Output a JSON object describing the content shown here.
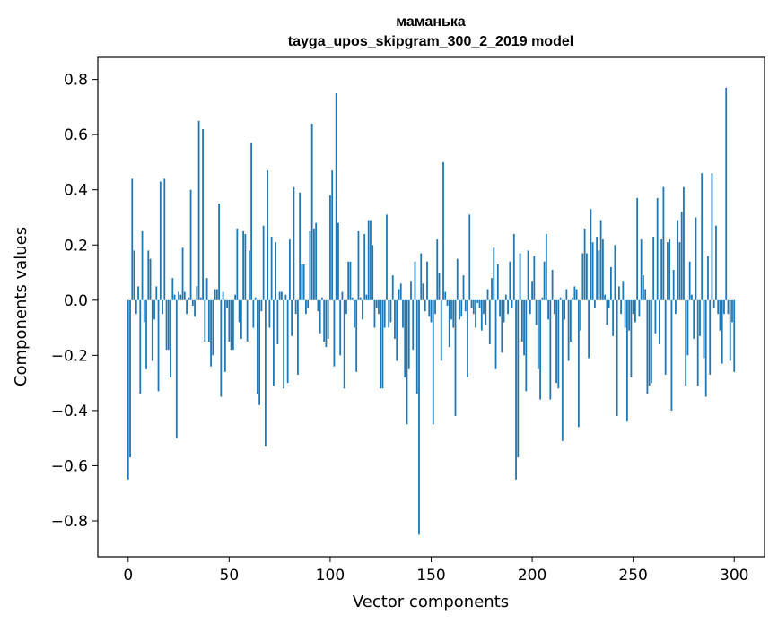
{
  "chart_data": {
    "type": "bar",
    "title_line1": "маманька",
    "title_line2": "tayga_upos_skipgram_300_2_2019 model",
    "xlabel": "Vector components",
    "ylabel": "Components values",
    "xlim": [
      -15,
      315
    ],
    "ylim": [
      -0.93,
      0.88
    ],
    "xticks": [
      0,
      50,
      100,
      150,
      200,
      250,
      300
    ],
    "xtick_labels": [
      "0",
      "50",
      "100",
      "150",
      "200",
      "250",
      "300"
    ],
    "yticks": [
      -0.8,
      -0.6,
      -0.4,
      -0.2,
      0.0,
      0.2,
      0.4,
      0.6,
      0.8
    ],
    "ytick_labels": [
      "−0.8",
      "−0.6",
      "−0.4",
      "−0.2",
      "0.0",
      "0.2",
      "0.4",
      "0.6",
      "0.8"
    ],
    "bar_color": "#1f77b4",
    "values": [
      -0.65,
      -0.57,
      0.44,
      0.18,
      -0.05,
      0.05,
      -0.34,
      0.25,
      -0.08,
      -0.25,
      0.18,
      0.15,
      -0.22,
      -0.07,
      0.05,
      -0.33,
      0.43,
      -0.05,
      0.44,
      -0.18,
      -0.18,
      -0.28,
      0.08,
      0.02,
      -0.5,
      0.03,
      0.02,
      0.19,
      0.03,
      -0.05,
      0.01,
      0.4,
      -0.02,
      -0.06,
      0.05,
      0.65,
      0.01,
      0.62,
      -0.15,
      0.08,
      -0.15,
      -0.24,
      -0.2,
      0.04,
      0.04,
      0.35,
      -0.35,
      0.03,
      -0.26,
      -0.03,
      -0.15,
      -0.18,
      -0.18,
      0.02,
      0.26,
      -0.08,
      -0.14,
      0.25,
      0.24,
      -0.15,
      0.18,
      0.57,
      -0.1,
      0.01,
      -0.34,
      -0.38,
      -0.04,
      0.27,
      -0.53,
      0.47,
      -0.1,
      0.23,
      -0.31,
      0.21,
      -0.16,
      0.03,
      0.03,
      -0.32,
      0.02,
      -0.3,
      0.22,
      -0.13,
      0.41,
      -0.05,
      -0.27,
      0.39,
      0.13,
      0.13,
      -0.05,
      -0.03,
      0.25,
      0.64,
      0.26,
      0.28,
      -0.04,
      -0.12,
      0.01,
      -0.15,
      -0.17,
      -0.14,
      0.38,
      0.47,
      -0.24,
      0.75,
      0.28,
      -0.2,
      0.03,
      -0.32,
      -0.05,
      0.14,
      0.14,
      0.01,
      -0.1,
      -0.26,
      0.25,
      0.01,
      -0.07,
      0.24,
      0.02,
      0.29,
      0.29,
      0.2,
      -0.1,
      -0.03,
      -0.05,
      -0.32,
      -0.32,
      -0.1,
      0.31,
      -0.1,
      -0.08,
      0.09,
      -0.14,
      -0.22,
      0.04,
      0.06,
      -0.1,
      -0.28,
      -0.45,
      -0.25,
      0.07,
      -0.18,
      0.14,
      -0.34,
      -0.85,
      0.17,
      0.06,
      -0.04,
      0.14,
      -0.06,
      -0.08,
      -0.45,
      -0.05,
      0.22,
      0.1,
      -0.22,
      0.5,
      0.03,
      -0.02,
      -0.17,
      -0.07,
      -0.1,
      -0.42,
      0.15,
      -0.07,
      -0.06,
      0.09,
      -0.04,
      -0.28,
      0.31,
      -0.03,
      -0.05,
      -0.1,
      -0.01,
      -0.03,
      -0.11,
      -0.05,
      -0.09,
      0.04,
      -0.16,
      0.08,
      0.19,
      -0.25,
      0.13,
      -0.06,
      -0.19,
      -0.08,
      0.02,
      -0.05,
      0.14,
      -0.03,
      0.24,
      -0.65,
      -0.57,
      0.17,
      -0.15,
      -0.2,
      -0.33,
      0.18,
      -0.05,
      0.07,
      0.16,
      -0.09,
      -0.25,
      -0.36,
      0.01,
      0.14,
      0.24,
      -0.07,
      -0.36,
      0.11,
      -0.05,
      -0.3,
      -0.32,
      0.01,
      -0.51,
      -0.07,
      0.04,
      -0.22,
      -0.15,
      0.01,
      0.05,
      0.04,
      -0.46,
      -0.11,
      0.17,
      0.26,
      0.17,
      -0.21,
      0.33,
      0.21,
      -0.03,
      0.23,
      0.18,
      0.29,
      0.22,
      0.02,
      -0.09,
      -0.03,
      0.12,
      -0.13,
      0.2,
      -0.42,
      0.05,
      -0.05,
      0.07,
      -0.1,
      -0.44,
      -0.11,
      -0.28,
      -0.05,
      -0.08,
      0.37,
      -0.06,
      0.22,
      0.09,
      0.04,
      -0.34,
      -0.31,
      -0.3,
      0.23,
      -0.12,
      0.37,
      -0.16,
      0.22,
      0.41,
      -0.27,
      0.21,
      0.22,
      -0.4,
      0.11,
      -0.05,
      0.29,
      0.21,
      0.32,
      0.41,
      -0.31,
      -0.2,
      0.14,
      0.02,
      -0.14,
      0.3,
      -0.31,
      -0.13,
      0.46,
      -0.21,
      -0.35,
      0.16,
      -0.27,
      0.46,
      -0.03,
      0.27,
      -0.05,
      -0.11,
      -0.23,
      -0.05,
      0.77,
      -0.05,
      -0.22,
      -0.08,
      -0.26
    ]
  }
}
